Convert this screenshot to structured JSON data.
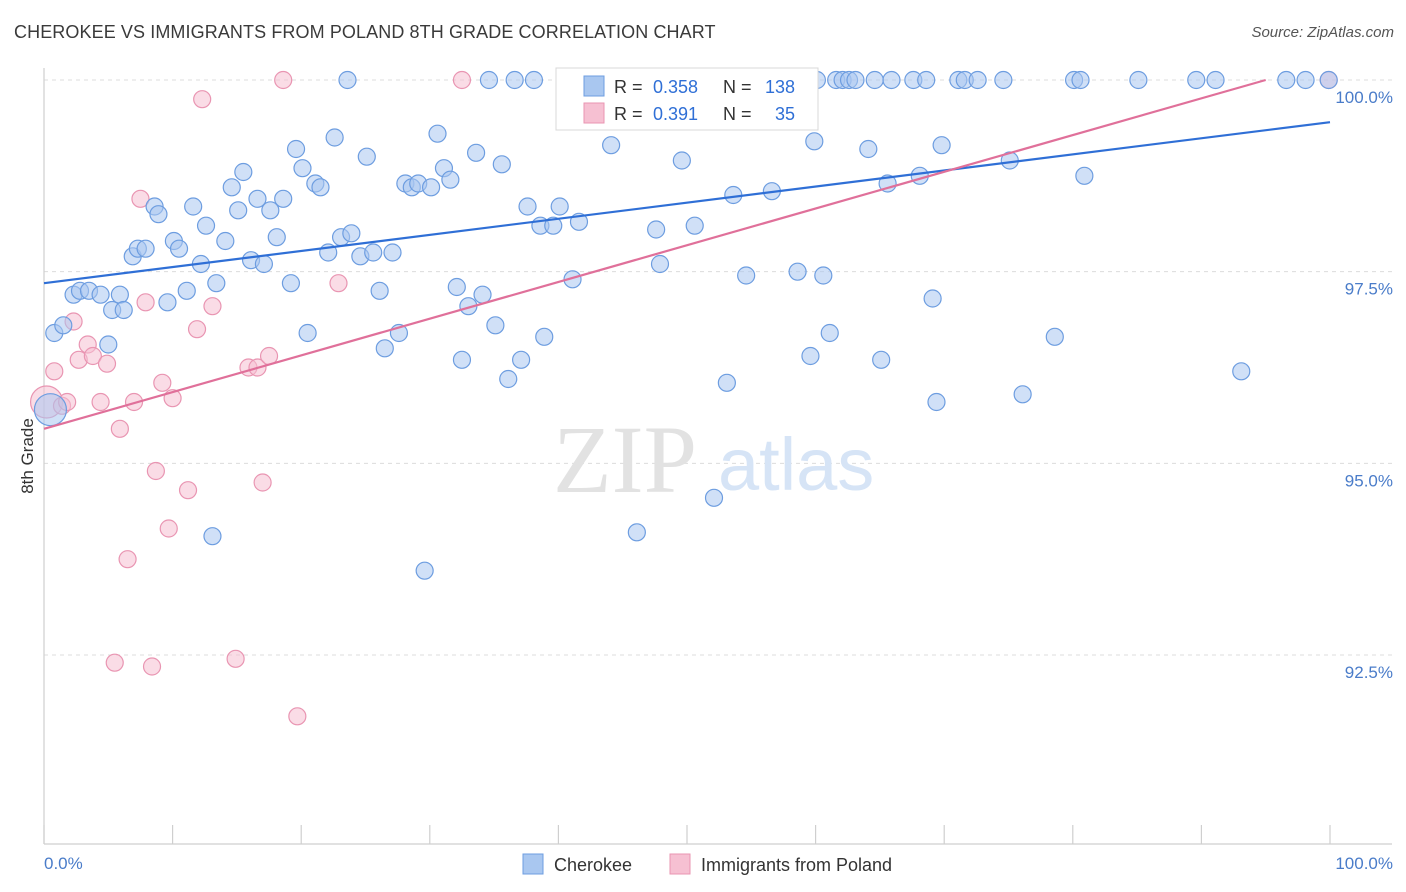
{
  "header": {
    "title": "CHEROKEE VS IMMIGRANTS FROM POLAND 8TH GRADE CORRELATION CHART",
    "source": "Source: ZipAtlas.com"
  },
  "watermark": {
    "zip": "ZIP",
    "atlas": "atlas"
  },
  "colors": {
    "cherokee_fill": "#a9c7f0",
    "cherokee_stroke": "#6d9de0",
    "cherokee_line": "#2f6fd6",
    "poland_fill": "#f6c0d2",
    "poland_stroke": "#e995b2",
    "poland_line": "#e0709a",
    "tick_label": "#4a7cc9"
  },
  "stats_box": {
    "rows": [
      {
        "r_label": "R =",
        "r_value": "0.358",
        "n_label": "N =",
        "n_value": "138"
      },
      {
        "r_label": "R =",
        "r_value": "0.391",
        "n_label": "N =",
        "n_value": "35"
      }
    ]
  },
  "chart_data": {
    "type": "scatter",
    "title": "CHEROKEE VS IMMIGRANTS FROM POLAND 8TH GRADE CORRELATION CHART",
    "xlabel": "",
    "ylabel": "8th Grade",
    "xlim": [
      0,
      100
    ],
    "ylim": [
      90.2,
      100.4
    ],
    "x_tick_labels": [
      "0.0%",
      "100.0%"
    ],
    "y_ticks": [
      92.5,
      95.0,
      97.5,
      100.0
    ],
    "y_tick_labels": [
      "92.5%",
      "95.0%",
      "97.5%",
      "100.0%"
    ],
    "grid": "horizontal dashed",
    "legend_position": "bottom-center",
    "series": [
      {
        "name": "Cherokee",
        "color": "#a9c7f0",
        "trend": {
          "x": [
            0,
            100
          ],
          "y": [
            97.35,
            99.45
          ]
        },
        "points": [
          [
            0.5,
            95.7
          ],
          [
            0.8,
            96.7
          ],
          [
            1.5,
            96.8
          ],
          [
            2.3,
            97.2
          ],
          [
            2.8,
            97.25
          ],
          [
            3.5,
            97.25
          ],
          [
            4.4,
            97.2
          ],
          [
            5.0,
            96.55
          ],
          [
            5.3,
            97.0
          ],
          [
            5.9,
            97.2
          ],
          [
            6.2,
            97.0
          ],
          [
            6.9,
            97.7
          ],
          [
            7.3,
            97.8
          ],
          [
            7.9,
            97.8
          ],
          [
            8.6,
            98.35
          ],
          [
            8.9,
            98.25
          ],
          [
            9.6,
            97.1
          ],
          [
            10.1,
            97.9
          ],
          [
            10.5,
            97.8
          ],
          [
            11.1,
            97.25
          ],
          [
            11.6,
            98.35
          ],
          [
            12.2,
            97.6
          ],
          [
            12.6,
            98.1
          ],
          [
            13.1,
            94.05
          ],
          [
            13.4,
            97.35
          ],
          [
            14.1,
            97.9
          ],
          [
            14.6,
            98.6
          ],
          [
            15.1,
            98.3
          ],
          [
            15.5,
            98.8
          ],
          [
            16.1,
            97.65
          ],
          [
            16.6,
            98.45
          ],
          [
            17.1,
            97.6
          ],
          [
            17.6,
            98.3
          ],
          [
            18.1,
            97.95
          ],
          [
            18.6,
            98.45
          ],
          [
            19.2,
            97.35
          ],
          [
            19.6,
            99.1
          ],
          [
            20.1,
            98.85
          ],
          [
            20.5,
            96.7
          ],
          [
            21.1,
            98.65
          ],
          [
            21.5,
            98.6
          ],
          [
            22.1,
            97.75
          ],
          [
            22.6,
            99.25
          ],
          [
            23.1,
            97.95
          ],
          [
            23.6,
            100.0
          ],
          [
            23.9,
            98.0
          ],
          [
            24.6,
            97.7
          ],
          [
            25.1,
            99.0
          ],
          [
            25.6,
            97.75
          ],
          [
            26.1,
            97.25
          ],
          [
            26.5,
            96.5
          ],
          [
            27.1,
            97.75
          ],
          [
            27.6,
            96.7
          ],
          [
            28.1,
            98.65
          ],
          [
            28.6,
            98.6
          ],
          [
            29.1,
            98.65
          ],
          [
            29.6,
            93.6
          ],
          [
            30.1,
            98.6
          ],
          [
            30.6,
            99.3
          ],
          [
            31.1,
            98.85
          ],
          [
            31.6,
            98.7
          ],
          [
            32.1,
            97.3
          ],
          [
            32.5,
            96.35
          ],
          [
            33.0,
            97.05
          ],
          [
            33.6,
            99.05
          ],
          [
            34.1,
            97.2
          ],
          [
            34.6,
            100.0
          ],
          [
            35.1,
            96.8
          ],
          [
            35.6,
            98.9
          ],
          [
            36.1,
            96.1
          ],
          [
            36.6,
            100.0
          ],
          [
            37.1,
            96.35
          ],
          [
            37.6,
            98.35
          ],
          [
            38.1,
            100.0
          ],
          [
            38.6,
            98.1
          ],
          [
            38.9,
            96.65
          ],
          [
            39.6,
            98.1
          ],
          [
            40.1,
            98.35
          ],
          [
            40.6,
            100.0
          ],
          [
            41.1,
            97.4
          ],
          [
            41.6,
            98.15
          ],
          [
            42.1,
            100.0
          ],
          [
            44.1,
            99.15
          ],
          [
            46.1,
            94.1
          ],
          [
            47.1,
            100.0
          ],
          [
            47.6,
            98.05
          ],
          [
            47.9,
            97.6
          ],
          [
            49.1,
            100.0
          ],
          [
            49.6,
            98.95
          ],
          [
            50.6,
            98.1
          ],
          [
            51.1,
            100.0
          ],
          [
            52.1,
            94.55
          ],
          [
            53.1,
            96.05
          ],
          [
            53.6,
            98.5
          ],
          [
            54.1,
            100.0
          ],
          [
            54.6,
            97.45
          ],
          [
            55.1,
            100.0
          ],
          [
            56.1,
            100.0
          ],
          [
            56.6,
            98.55
          ],
          [
            57.1,
            100.0
          ],
          [
            58.1,
            100.0
          ],
          [
            58.6,
            97.5
          ],
          [
            59.1,
            100.0
          ],
          [
            59.6,
            96.4
          ],
          [
            59.9,
            99.2
          ],
          [
            60.1,
            100.0
          ],
          [
            60.6,
            97.45
          ],
          [
            61.1,
            96.7
          ],
          [
            61.6,
            100.0
          ],
          [
            62.1,
            100.0
          ],
          [
            62.6,
            100.0
          ],
          [
            63.1,
            100.0
          ],
          [
            64.1,
            99.1
          ],
          [
            64.6,
            100.0
          ],
          [
            65.1,
            96.35
          ],
          [
            65.6,
            98.65
          ],
          [
            65.9,
            100.0
          ],
          [
            67.6,
            100.0
          ],
          [
            68.1,
            98.75
          ],
          [
            68.6,
            100.0
          ],
          [
            69.1,
            97.15
          ],
          [
            69.4,
            95.8
          ],
          [
            69.8,
            99.15
          ],
          [
            71.1,
            100.0
          ],
          [
            71.6,
            100.0
          ],
          [
            72.6,
            100.0
          ],
          [
            74.6,
            100.0
          ],
          [
            75.1,
            98.95
          ],
          [
            76.1,
            95.9
          ],
          [
            78.6,
            96.65
          ],
          [
            80.1,
            100.0
          ],
          [
            80.9,
            98.75
          ],
          [
            80.6,
            100.0
          ],
          [
            85.1,
            100.0
          ],
          [
            89.6,
            100.0
          ],
          [
            91.1,
            100.0
          ],
          [
            93.1,
            96.2
          ],
          [
            96.6,
            100.0
          ],
          [
            98.1,
            100.0
          ],
          [
            99.9,
            100.0
          ]
        ]
      },
      {
        "name": "Immigrants from Poland",
        "color": "#f6c0d2",
        "trend": {
          "x": [
            0,
            95
          ],
          "y": [
            95.45,
            100.0
          ]
        },
        "points": [
          [
            0.2,
            95.8
          ],
          [
            0.8,
            96.2
          ],
          [
            1.4,
            95.75
          ],
          [
            1.8,
            95.8
          ],
          [
            2.3,
            96.85
          ],
          [
            2.7,
            96.35
          ],
          [
            3.4,
            96.55
          ],
          [
            3.8,
            96.4
          ],
          [
            4.4,
            95.8
          ],
          [
            4.9,
            96.3
          ],
          [
            5.5,
            92.4
          ],
          [
            5.9,
            95.45
          ],
          [
            6.5,
            93.75
          ],
          [
            7.0,
            95.8
          ],
          [
            7.5,
            98.45
          ],
          [
            7.9,
            97.1
          ],
          [
            8.4,
            92.35
          ],
          [
            8.7,
            94.9
          ],
          [
            9.2,
            96.05
          ],
          [
            9.7,
            94.15
          ],
          [
            10.0,
            95.85
          ],
          [
            11.2,
            94.65
          ],
          [
            11.9,
            96.75
          ],
          [
            12.3,
            99.75
          ],
          [
            13.1,
            97.05
          ],
          [
            14.9,
            92.45
          ],
          [
            15.9,
            96.25
          ],
          [
            16.6,
            96.25
          ],
          [
            17.0,
            94.75
          ],
          [
            17.5,
            96.4
          ],
          [
            18.6,
            100.0
          ],
          [
            19.7,
            91.7
          ],
          [
            22.9,
            97.35
          ],
          [
            32.5,
            100.0
          ],
          [
            99.9,
            100.0
          ]
        ]
      }
    ]
  }
}
